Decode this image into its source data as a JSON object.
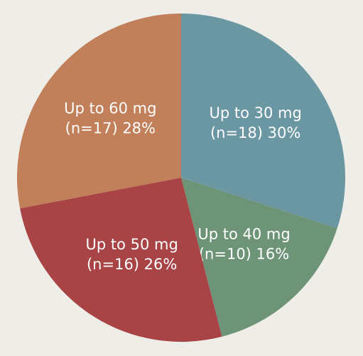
{
  "chart_data": {
    "type": "pie",
    "categories": [
      "Up to 30 mg",
      "Up to 40 mg",
      "Up to 50 mg",
      "Up to 60 mg"
    ],
    "values": [
      30,
      16,
      26,
      28
    ],
    "value_labels": [
      "(n=18) 30%",
      "(n=10) 16%",
      "(n=16) 26%",
      "(n=17) 28%"
    ],
    "colors": [
      "#6b97a3",
      "#6e9478",
      "#a84346",
      "#c17f5a"
    ]
  }
}
